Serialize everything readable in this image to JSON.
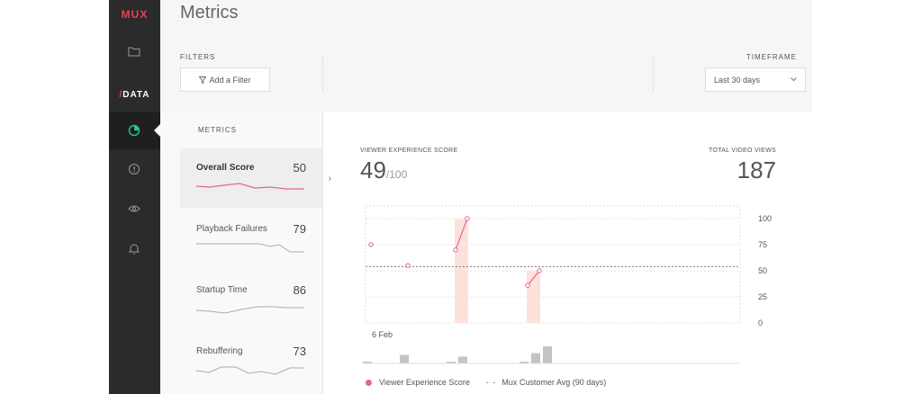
{
  "sidebar": {
    "logo": "MUX",
    "section_label": "DATA",
    "section_slash": "/",
    "icons": [
      "folder-icon",
      "pie-chart-icon",
      "alert-icon",
      "eye-icon",
      "bell-icon"
    ],
    "accent_color": "#2bbf9a"
  },
  "header": {
    "title": "Metrics",
    "filters_label": "FILTERS",
    "add_filter_label": "Add a Filter",
    "timeframe_label": "TIMEFRAME",
    "timeframe_value": "Last 30 days"
  },
  "metrics": {
    "label": "METRICS",
    "items": [
      {
        "name": "Overall Score",
        "value": "50",
        "selected": true
      },
      {
        "name": "Playback Failures",
        "value": "79",
        "selected": false
      },
      {
        "name": "Startup Time",
        "value": "86",
        "selected": false
      },
      {
        "name": "Rebuffering",
        "value": "73",
        "selected": false
      }
    ]
  },
  "summary": {
    "ves_label": "VIEWER EXPERIENCE SCORE",
    "ves_value": "49",
    "ves_denominator": "/100",
    "views_label": "TOTAL VIDEO VIEWS",
    "views_value": "187"
  },
  "chart_data": {
    "type": "line",
    "x_tick_label": "6 Feb",
    "y_ticks": [
      "100",
      "75",
      "50",
      "25",
      "0"
    ],
    "ylim": [
      0,
      100
    ],
    "series": [
      {
        "name": "Viewer Experience Score",
        "color": "#e8609a",
        "segments": [
          [
            75
          ],
          [
            55
          ],
          [
            70,
            100
          ],
          [
            36,
            50
          ]
        ]
      }
    ],
    "reference_line": {
      "name": "Mux Customer Avg (90 days)",
      "value": 54
    },
    "views_bars": [
      1,
      5,
      1,
      4,
      1,
      6,
      10
    ],
    "legend": [
      "Viewer Experience Score",
      "Mux Customer Avg (90 days)"
    ]
  },
  "legend": {
    "series_label": "Viewer Experience Score",
    "dash": "- -",
    "avg_label": "Mux Customer Avg (90 days)"
  }
}
